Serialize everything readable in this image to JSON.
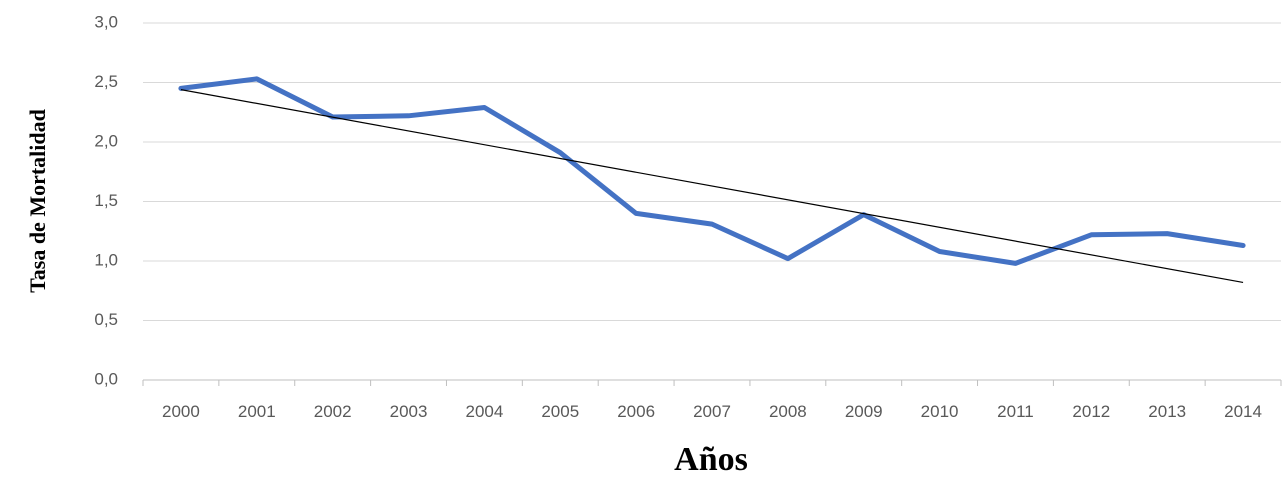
{
  "chart_data": {
    "type": "line",
    "title": "",
    "xlabel": "Años",
    "ylabel": "Tasa de Mortalidad",
    "categories": [
      "2000",
      "2001",
      "2002",
      "2003",
      "2004",
      "2005",
      "2006",
      "2007",
      "2008",
      "2009",
      "2010",
      "2011",
      "2012",
      "2013",
      "2014"
    ],
    "series": [
      {
        "values": [
          2.45,
          2.53,
          2.21,
          2.22,
          2.29,
          1.91,
          1.4,
          1.31,
          1.02,
          1.39,
          1.08,
          0.98,
          1.22,
          1.23,
          1.13
        ],
        "color": "#4472C4"
      }
    ],
    "trendline": {
      "type": "linear",
      "start": 2.44,
      "end": 0.82,
      "color": "#000000"
    },
    "ylim": [
      0,
      3
    ],
    "yticks": [
      "0,0",
      "0,5",
      "1,0",
      "1,5",
      "2,0",
      "2,5",
      "3,0"
    ],
    "grid": true,
    "legend": "none"
  }
}
